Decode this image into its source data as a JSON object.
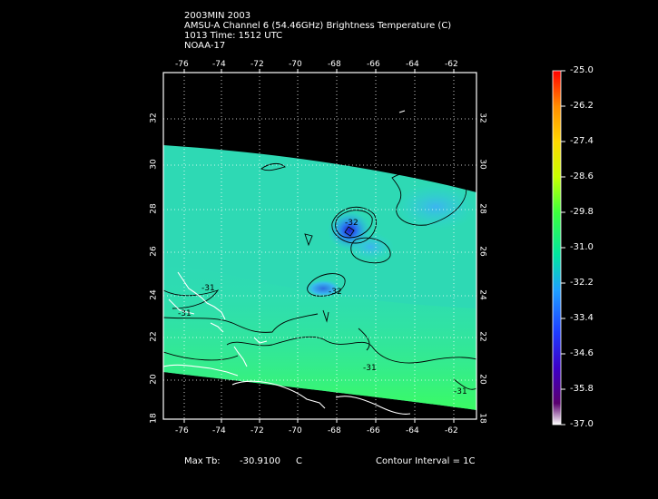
{
  "header": {
    "line1": "2003MIN 2003",
    "line2": "AMSU-A Channel 6 (54.46GHz) Brightness Temperature (C)",
    "line3": "1013 Time: 1512 UTC",
    "line4": "NOAA-17"
  },
  "axes": {
    "lon_labels": [
      "-76",
      "-74",
      "-72",
      "-70",
      "-68",
      "-66",
      "-64",
      "-62"
    ],
    "lat_labels": [
      "18",
      "20",
      "22",
      "24",
      "26",
      "28",
      "30",
      "32"
    ]
  },
  "colorbar": {
    "labels": [
      "-25.0",
      "-26.2",
      "-27.4",
      "-28.6",
      "-29.8",
      "-31.0",
      "-32.2",
      "-33.4",
      "-34.6",
      "-35.8",
      "-37.0"
    ],
    "colors": [
      "#ff0000",
      "#ff8c00",
      "#ffd700",
      "#c8ff00",
      "#3cff3c",
      "#00e6a0",
      "#1ea0ff",
      "#1e3cff",
      "#3c00c8",
      "#5a006e",
      "#ffffff"
    ]
  },
  "contours": {
    "labels": [
      "-31",
      "-31",
      "-32",
      "-32",
      "-31",
      "-31"
    ]
  },
  "footer": {
    "max_tb_label": "Max Tb:",
    "max_tb_value": "-30.9100",
    "max_tb_unit": "C",
    "contour_interval": "Contour Interval = 1C"
  }
}
